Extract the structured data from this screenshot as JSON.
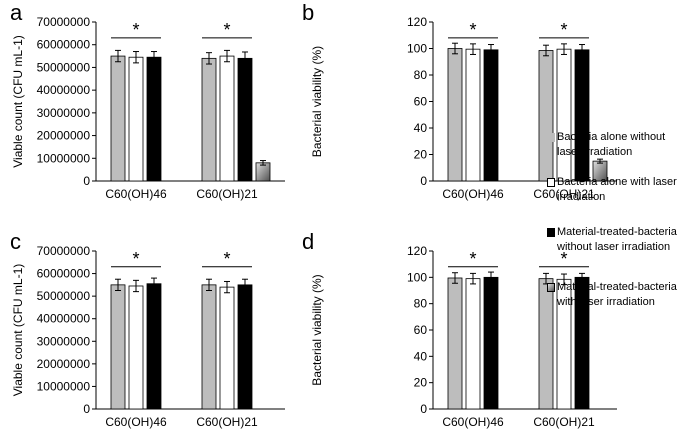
{
  "legend": {
    "items": [
      {
        "label": "Bacteria alone without laser irradiation",
        "color": "#bdbdbd"
      },
      {
        "label": "Bacteria alone with laser irradiation",
        "color": "#ffffff"
      },
      {
        "label": "Material-treated-bacteria without laser irradiation",
        "color": "#000000"
      },
      {
        "label": "Material-treated-bacteria with laser irradiation",
        "color": "gradient-gray"
      }
    ]
  },
  "chart_data": [
    {
      "panel": "a",
      "type": "bar",
      "ylabel": "Viable count (CFU mL-1)",
      "ylim": [
        0,
        70000000
      ],
      "yticks": [
        "0",
        "10000000",
        "20000000",
        "30000000",
        "40000000",
        "50000000",
        "60000000",
        "70000000"
      ],
      "categories": [
        "C60(OH)46",
        "C60(OH)21"
      ],
      "series": [
        {
          "values": [
            55000000,
            54000000
          ],
          "errors": [
            2500000,
            2500000
          ]
        },
        {
          "values": [
            54500000,
            55000000
          ],
          "errors": [
            2500000,
            2500000
          ]
        },
        {
          "values": [
            54500000,
            54000000
          ],
          "errors": [
            2500000,
            2800000
          ]
        },
        {
          "values": [
            null,
            8000000
          ],
          "errors": [
            null,
            1000000
          ]
        }
      ],
      "annotations": [
        "*",
        "*"
      ]
    },
    {
      "panel": "b",
      "type": "bar",
      "ylabel": "Bacterial viability (%)",
      "ylim": [
        0,
        120
      ],
      "yticks": [
        "0",
        "20",
        "40",
        "60",
        "80",
        "100",
        "120"
      ],
      "categories": [
        "C60(OH)46",
        "C60(OH)21"
      ],
      "series": [
        {
          "values": [
            100,
            98.5
          ],
          "errors": [
            4,
            4
          ]
        },
        {
          "values": [
            99.5,
            99.5
          ],
          "errors": [
            4,
            4
          ]
        },
        {
          "values": [
            99,
            99
          ],
          "errors": [
            4,
            4
          ]
        },
        {
          "values": [
            null,
            15
          ],
          "errors": [
            null,
            1.5
          ]
        }
      ],
      "annotations": [
        "*",
        "*"
      ]
    },
    {
      "panel": "c",
      "type": "bar",
      "ylabel": "Viable count (CFU mL-1)",
      "ylim": [
        0,
        70000000
      ],
      "yticks": [
        "0",
        "10000000",
        "20000000",
        "30000000",
        "40000000",
        "50000000",
        "60000000",
        "70000000"
      ],
      "categories": [
        "C60(OH)46",
        "C60(OH)21"
      ],
      "series": [
        {
          "values": [
            55000000,
            55000000
          ],
          "errors": [
            2500000,
            2500000
          ]
        },
        {
          "values": [
            54500000,
            54000000
          ],
          "errors": [
            2500000,
            2500000
          ]
        },
        {
          "values": [
            55500000,
            55000000
          ],
          "errors": [
            2500000,
            2500000
          ]
        },
        {
          "values": [
            null,
            null
          ],
          "errors": [
            null,
            null
          ]
        }
      ],
      "annotations": [
        "*",
        "*"
      ]
    },
    {
      "panel": "d",
      "type": "bar",
      "ylabel": "Bacterial viability (%)",
      "ylim": [
        0,
        120
      ],
      "yticks": [
        "0",
        "20",
        "40",
        "60",
        "80",
        "100",
        "120"
      ],
      "categories": [
        "C60(OH)46",
        "C60(OH)21"
      ],
      "series": [
        {
          "values": [
            99.5,
            99
          ],
          "errors": [
            4,
            4
          ]
        },
        {
          "values": [
            99,
            98.5
          ],
          "errors": [
            4,
            4
          ]
        },
        {
          "values": [
            100,
            100
          ],
          "errors": [
            4,
            3
          ]
        },
        {
          "values": [
            null,
            null
          ],
          "errors": [
            null,
            null
          ]
        }
      ],
      "annotations": [
        "*",
        "*"
      ]
    }
  ]
}
